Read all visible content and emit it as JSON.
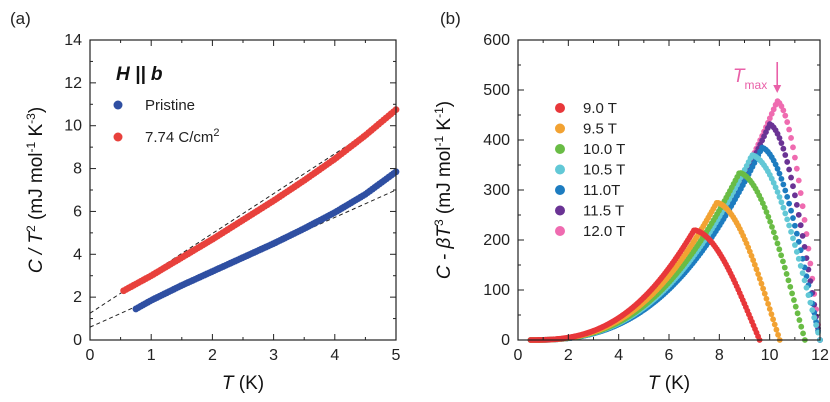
{
  "chart_data": [
    {
      "type": "scatter",
      "panel_label": "(a)",
      "annotation": "H || b",
      "xlabel": {
        "var": "T",
        "unit": "(K)"
      },
      "ylabel": {
        "lhs": "C / T",
        "lhs_sup": "2",
        "unit_pre": "(mJ mol",
        "unit_sup1": "-1",
        "unit_mid": "K",
        "unit_sup2": "-3",
        "unit_post": ")"
      },
      "xlim": [
        0,
        5
      ],
      "ylim": [
        0,
        14
      ],
      "xticks": [
        0,
        1,
        2,
        3,
        4,
        5
      ],
      "yticks": [
        0,
        2,
        4,
        6,
        8,
        10,
        12,
        14
      ],
      "legend_position": "top-left",
      "series": [
        {
          "name": "Pristine",
          "color": "#2f4fa2",
          "x_range": [
            0.75,
            5.0
          ],
          "x": [
            0.75,
            1.0,
            1.5,
            2.0,
            2.5,
            3.0,
            3.5,
            4.0,
            4.5,
            5.0
          ],
          "y": [
            1.45,
            1.85,
            2.55,
            3.2,
            3.85,
            4.5,
            5.2,
            5.95,
            6.8,
            7.85
          ]
        },
        {
          "name": "7.74 C/cm",
          "name_sup": "2",
          "color": "#e8413c",
          "x_range": [
            0.55,
            5.0
          ],
          "x": [
            0.55,
            1.0,
            1.5,
            2.0,
            2.5,
            3.0,
            3.5,
            4.0,
            4.5,
            5.0
          ],
          "y": [
            2.3,
            3.0,
            3.85,
            4.7,
            5.6,
            6.5,
            7.45,
            8.45,
            9.55,
            10.75
          ]
        }
      ],
      "fit_lines": [
        {
          "style": "dashed",
          "x": [
            0,
            5
          ],
          "y": [
            0.6,
            7.0
          ]
        },
        {
          "style": "dashed",
          "x": [
            0,
            5
          ],
          "y": [
            1.25,
            10.55
          ]
        }
      ]
    },
    {
      "type": "scatter",
      "panel_label": "(b)",
      "xlabel": {
        "var": "T",
        "unit": "(K)"
      },
      "ylabel": {
        "lhs": "C - βT",
        "lhs_sup": "3",
        "unit_pre": "(mJ mol",
        "unit_sup1": "-1",
        "unit_mid": "K",
        "unit_sup2": "-1",
        "unit_post": ")"
      },
      "xlim": [
        0,
        12
      ],
      "ylim": [
        0,
        600
      ],
      "xticks": [
        0,
        2,
        4,
        6,
        8,
        10,
        12
      ],
      "yticks": [
        0,
        100,
        200,
        300,
        400,
        500,
        600
      ],
      "legend_position": "left",
      "annotation": {
        "text": "T",
        "sub": "max",
        "x": 10.3,
        "color": "#e960a8"
      },
      "series": [
        {
          "name": "9.0 T",
          "color": "#e8373a",
          "peak": [
            7.0,
            220
          ],
          "drop": 2.6,
          "x_end": 9.6
        },
        {
          "name": "9.5 T",
          "color": "#f2a232",
          "peak": [
            7.9,
            275
          ],
          "drop": 2.5,
          "x_end": 10.4
        },
        {
          "name": "10.0 T",
          "color": "#69bc45",
          "peak": [
            8.8,
            335
          ],
          "drop": 2.6,
          "x_end": 11.4
        },
        {
          "name": "10.5 T",
          "color": "#62c8d6",
          "peak": [
            9.3,
            370
          ],
          "drop": 2.7,
          "x_end": 12.0
        },
        {
          "name": "11.0T",
          "color": "#1d7cc0",
          "peak": [
            9.7,
            385
          ],
          "drop": 2.3,
          "x_end": 12.0
        },
        {
          "name": "11.5 T",
          "color": "#6a3394",
          "peak": [
            10.0,
            432
          ],
          "drop": 2.0,
          "x_end": 12.0
        },
        {
          "name": "12.0 T",
          "color": "#ef6bb0",
          "peak": [
            10.3,
            478
          ],
          "drop": 1.7,
          "x_end": 12.0
        }
      ]
    }
  ]
}
